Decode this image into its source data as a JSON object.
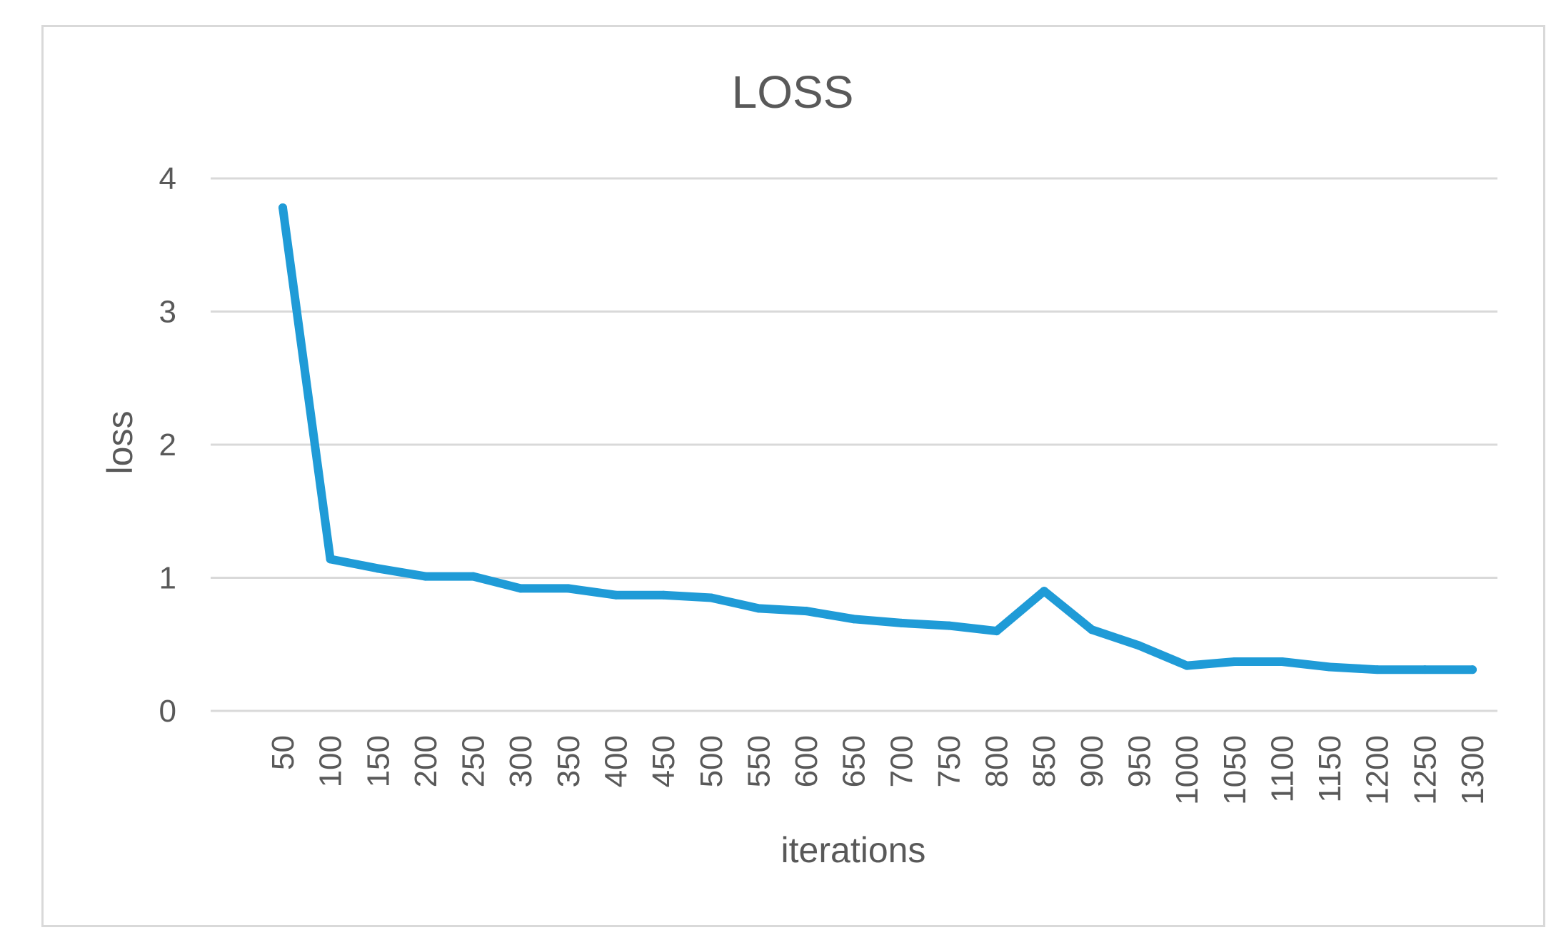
{
  "chart_data": {
    "type": "line",
    "title": "LOSS",
    "xlabel": "iterations",
    "ylabel": "loss",
    "ylim": [
      0,
      4
    ],
    "yticks": [
      "0",
      "1",
      "2",
      "3",
      "4"
    ],
    "categories": [
      "50",
      "100",
      "150",
      "200",
      "250",
      "300",
      "350",
      "400",
      "450",
      "500",
      "550",
      "600",
      "650",
      "700",
      "750",
      "800",
      "850",
      "900",
      "950",
      "1000",
      "1050",
      "1100",
      "1150",
      "1200",
      "1250",
      "1300"
    ],
    "series": [
      {
        "values": [
          3.78,
          1.14,
          1.07,
          1.01,
          1.01,
          0.92,
          0.92,
          0.87,
          0.87,
          0.85,
          0.77,
          0.75,
          0.69,
          0.66,
          0.64,
          0.6,
          0.9,
          0.61,
          0.49,
          0.34,
          0.37,
          0.37,
          0.33,
          0.31,
          0.31,
          0.31
        ],
        "color": "#1f9bd7"
      }
    ],
    "grid": true,
    "legend": "none",
    "colors": {
      "line": "#1f9bd7",
      "grid": "#d9d9d9",
      "text": "#595959",
      "frame": "#d9d9d9"
    }
  }
}
